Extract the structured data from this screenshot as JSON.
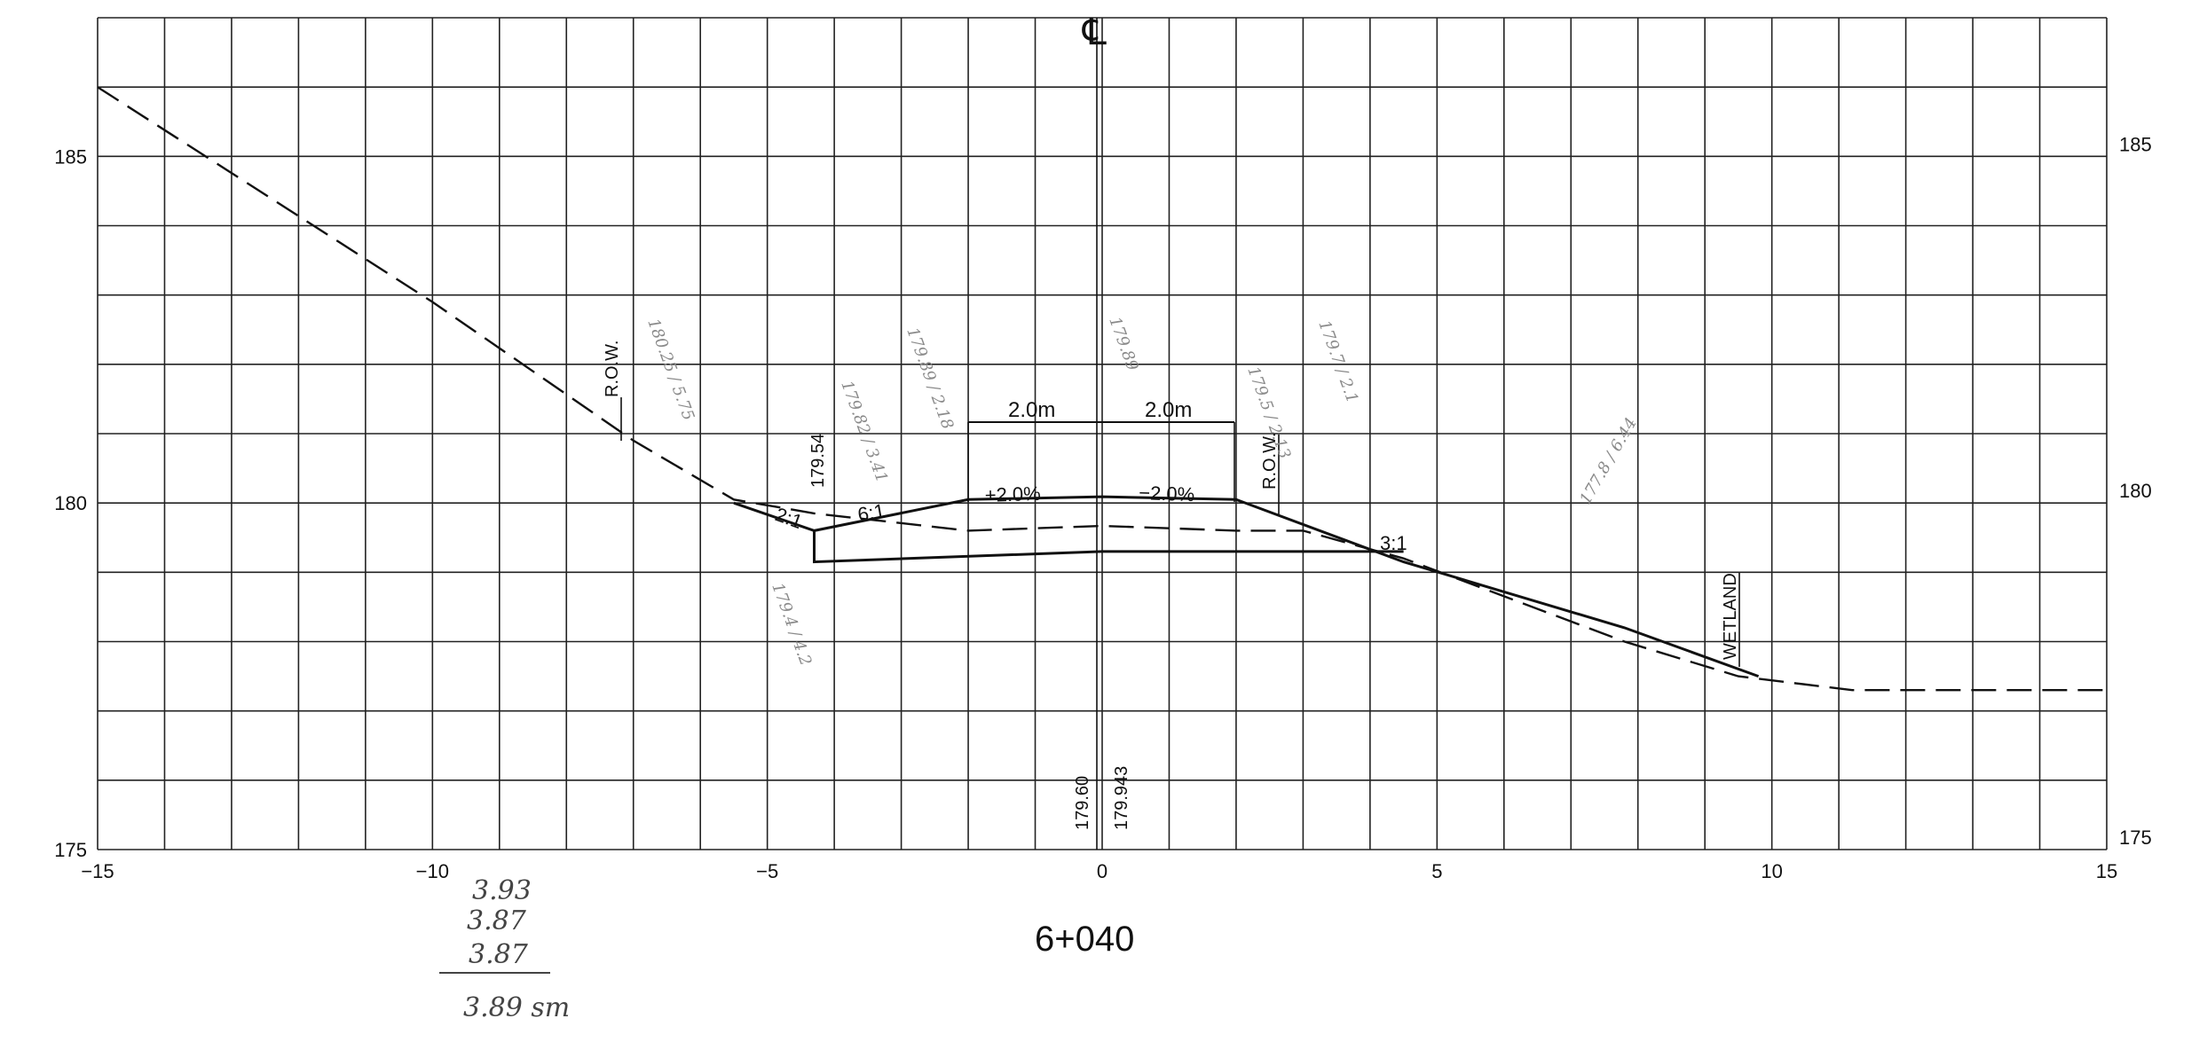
{
  "sheet": {
    "station": "6+040",
    "centerline_symbol": "℄",
    "handwritten_sum": [
      "3.93",
      "3.87",
      "3.87",
      "3.89 sm"
    ]
  },
  "axes": {
    "x_ticks": [
      "−15",
      "−10",
      "−5",
      "0",
      "5",
      "10",
      "15"
    ],
    "y_ticks_left": [
      "185",
      "180",
      "175"
    ],
    "y_ticks_right": [
      "185",
      "180",
      "175"
    ],
    "x_range": [
      -15,
      15
    ],
    "y_range": [
      175,
      187
    ],
    "grid": true
  },
  "labels": {
    "row_left": "R.O.W.",
    "row_right": "R.O.W.",
    "wetland": "WETLAND",
    "width_left": "2.0m",
    "width_right": "2.0m",
    "slope_left_crown": "+2.0%",
    "slope_right_crown": "−2.0%",
    "slope_6_1": "6:1",
    "slope_2_1": "2:1",
    "slope_3_1": "3:1",
    "elev_179_54": "179.54",
    "elev_179_60": "179.60",
    "elev_179_943": "179.943"
  },
  "faint_notes": {
    "n1": "180.25 / 5.75",
    "n2": "179.89 / 2.18",
    "n3": "179.82 / 3.41",
    "n4": "179.89",
    "n5": "179.5 / 2.13",
    "n6": "179.7 / 2.1",
    "n7": "179.4 / 4.2",
    "n8": "177.8 / 6.44"
  },
  "chart_data": {
    "type": "line",
    "title": "",
    "xlabel": "",
    "ylabel": "",
    "xlim": [
      -15,
      15
    ],
    "ylim": [
      175,
      187
    ],
    "series": [
      {
        "style": "dashed",
        "points": [
          [
            -15,
            186.0
          ],
          [
            -10,
            182.9
          ],
          [
            -7.0,
            180.9
          ],
          [
            -5.5,
            180.05
          ],
          [
            -4.3,
            179.85
          ],
          [
            -2.0,
            179.6
          ],
          [
            0,
            179.67
          ],
          [
            2.0,
            179.6
          ],
          [
            3.0,
            179.6
          ],
          [
            4.5,
            179.2
          ],
          [
            7.8,
            178.0
          ],
          [
            9.5,
            177.5
          ],
          [
            11.2,
            177.3
          ],
          [
            15,
            177.3
          ]
        ]
      },
      {
        "style": "solid",
        "points": [
          [
            -5.5,
            180.0
          ],
          [
            -4.3,
            179.6
          ],
          [
            -2.0,
            180.05
          ],
          [
            0,
            180.09
          ],
          [
            2.0,
            180.05
          ],
          [
            4.5,
            179.15
          ],
          [
            7.8,
            178.2
          ],
          [
            9.8,
            177.5
          ]
        ]
      },
      {
        "style": "solid",
        "points": [
          [
            -4.3,
            179.6
          ],
          [
            -4.3,
            179.15
          ],
          [
            0,
            179.3
          ],
          [
            4.5,
            179.3
          ]
        ]
      }
    ]
  }
}
